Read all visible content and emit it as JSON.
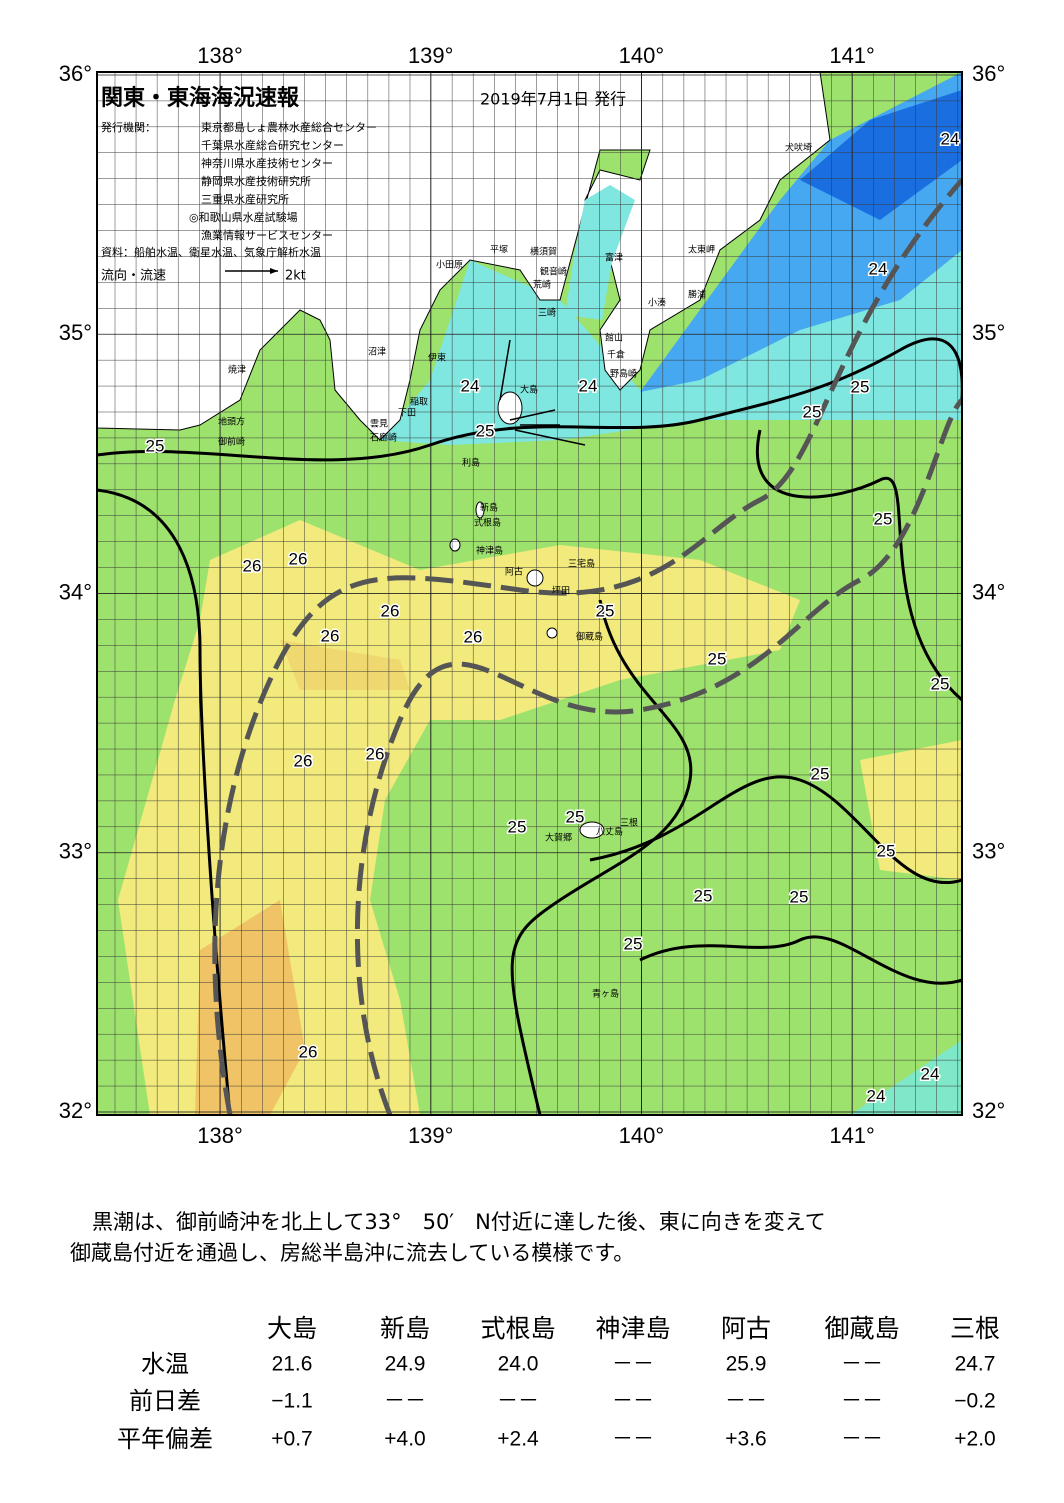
{
  "header": {
    "title": "関東・東海海況速報",
    "date": "2019年7月1日 発行",
    "publisher_label": "発行機関：",
    "publishers": [
      "東京都島しょ農林水産総合センター",
      "千葉県水産総合研究センター",
      "神奈川県水産技術センター",
      "静岡県水産技術研究所",
      "三重県水産研究所",
      "◎和歌山県水産試験場",
      "漁業情報サービスセンター"
    ],
    "sources": "資料：船舶水温、衛星水温、気象庁解析水温",
    "legend_label": "流向・流速",
    "legend_speed": "2kt"
  },
  "map": {
    "longitudes": [
      {
        "value": 138,
        "label": "138°"
      },
      {
        "value": 139,
        "label": "139°"
      },
      {
        "value": 140,
        "label": "140°"
      },
      {
        "value": 141,
        "label": "141°"
      }
    ],
    "latitudes": [
      {
        "value": 36,
        "label": "36°"
      },
      {
        "value": 35,
        "label": "35°"
      },
      {
        "value": 34,
        "label": "34°"
      },
      {
        "value": 33,
        "label": "33°"
      },
      {
        "value": 32,
        "label": "32°"
      }
    ],
    "place_names": [
      "犬吠埼",
      "太東岬",
      "勝浦",
      "小湊",
      "館山",
      "千倉",
      "野島崎",
      "富津",
      "観音崎",
      "横須賀",
      "荒崎",
      "三崎",
      "平塚",
      "小田原",
      "沼津",
      "伊東",
      "大島",
      "焼津",
      "稲取",
      "下田",
      "雲見",
      "石廊崎",
      "地頭方",
      "御前崎",
      "利島",
      "新島",
      "式根島",
      "神津島",
      "三宅島",
      "阿古",
      "坪田",
      "御蔵島",
      "八丈島",
      "三根",
      "大賀郷",
      "青ヶ島"
    ],
    "contour_labels": [
      24,
      24,
      25,
      25,
      25,
      25,
      24,
      25,
      26,
      26,
      26,
      26,
      26,
      25,
      25,
      25,
      26,
      26,
      25,
      25,
      25,
      25,
      25,
      25,
      25,
      26,
      24,
      24,
      24
    ]
  },
  "summary": [
    "黒潮は、御前崎沖を北上して33°　50′　N付近に達した後、東に向きを変えて",
    "御蔵島付近を通過し、房総半島沖に流去している模様です。"
  ],
  "table": {
    "columns": [
      "大島",
      "新島",
      "式根島",
      "神津島",
      "阿古",
      "御蔵島",
      "三根"
    ],
    "rows": [
      {
        "label": "水温",
        "values": [
          "21.6",
          "24.9",
          "24.0",
          "－－",
          "25.9",
          "－－",
          "24.7"
        ]
      },
      {
        "label": "前日差",
        "values": [
          "−1.1",
          "－－",
          "－－",
          "－－",
          "－－",
          "－－",
          "−0.2"
        ]
      },
      {
        "label": "平年偏差",
        "values": [
          "+0.7",
          "+4.0",
          "+2.4",
          "－－",
          "+3.6",
          "－－",
          "+2.0"
        ]
      }
    ]
  }
}
